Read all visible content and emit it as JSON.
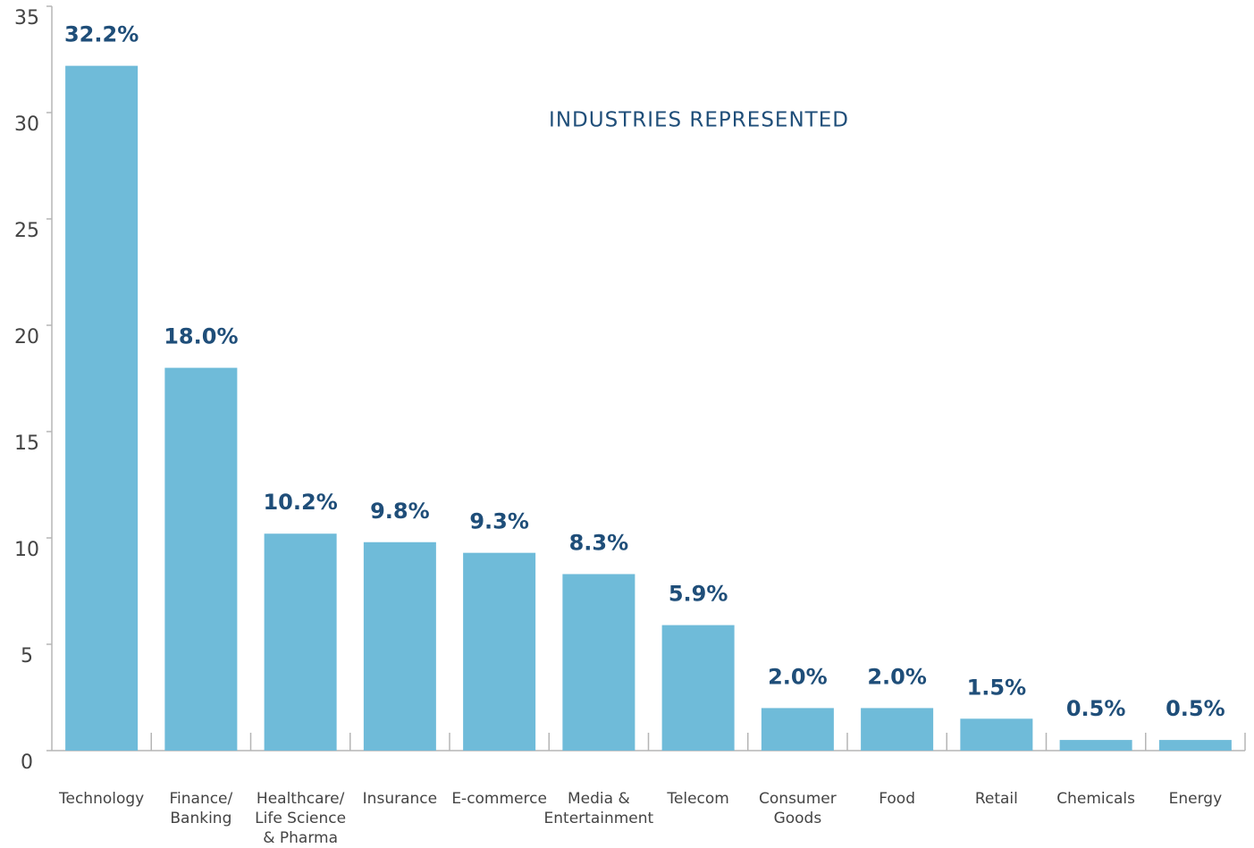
{
  "chart_data": {
    "type": "bar",
    "title": "INDUSTRIES REPRESENTED",
    "categories": [
      "Technology",
      "Finance/\nBanking",
      "Healthcare/\nLife Science\n& Pharma",
      "Insurance",
      "E-commerce",
      "Media &\nEntertainment",
      "Telecom",
      "Consumer\nGoods",
      "Food",
      "Retail",
      "Chemicals",
      "Energy"
    ],
    "values": [
      32.2,
      18.0,
      10.2,
      9.8,
      9.3,
      8.3,
      5.9,
      2.0,
      2.0,
      1.5,
      0.5,
      0.5
    ],
    "value_labels": [
      "32.2%",
      "18.0%",
      "10.2%",
      "9.8%",
      "9.3%",
      "8.3%",
      "5.9%",
      "2.0%",
      "2.0%",
      "1.5%",
      "0.5%",
      "0.5%"
    ],
    "color": "#6fbbd9",
    "ylim": [
      0,
      35
    ],
    "yticks": [
      0,
      5,
      10,
      15,
      20,
      25,
      30,
      35
    ]
  }
}
